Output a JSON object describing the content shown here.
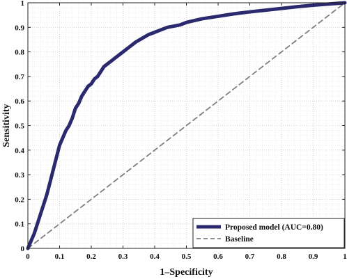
{
  "chart_data": {
    "type": "line",
    "title": "",
    "xlabel": "1–Specificity",
    "ylabel": "Sensitivity",
    "xlim": [
      0,
      1
    ],
    "ylim": [
      0,
      1
    ],
    "x_ticks": [
      "0",
      "0.1",
      "0.2",
      "0.3",
      "0.4",
      "0.5",
      "0.6",
      "0.7",
      "0.8",
      "0.9",
      "1"
    ],
    "y_ticks": [
      "0",
      "0.1",
      "0.2",
      "0.3",
      "0.4",
      "0.5",
      "0.6",
      "0.7",
      "0.8",
      "0.9",
      "1"
    ],
    "grid": true,
    "legend_position": "bottom-right",
    "series": [
      {
        "name": "Proposed model (AUC=0.80)",
        "color": "#2b2a6e",
        "style": "solid",
        "x": [
          0,
          0.01,
          0.02,
          0.03,
          0.04,
          0.05,
          0.06,
          0.07,
          0.08,
          0.09,
          0.1,
          0.11,
          0.12,
          0.13,
          0.14,
          0.15,
          0.16,
          0.17,
          0.18,
          0.19,
          0.2,
          0.21,
          0.22,
          0.23,
          0.24,
          0.25,
          0.26,
          0.27,
          0.28,
          0.29,
          0.3,
          0.32,
          0.34,
          0.36,
          0.38,
          0.4,
          0.42,
          0.44,
          0.46,
          0.48,
          0.5,
          0.55,
          0.6,
          0.65,
          0.7,
          0.75,
          0.8,
          0.85,
          0.9,
          0.95,
          1.0
        ],
        "y": [
          0,
          0.03,
          0.06,
          0.1,
          0.14,
          0.18,
          0.22,
          0.27,
          0.32,
          0.37,
          0.42,
          0.45,
          0.48,
          0.5,
          0.53,
          0.57,
          0.59,
          0.62,
          0.64,
          0.66,
          0.67,
          0.69,
          0.7,
          0.72,
          0.74,
          0.75,
          0.76,
          0.77,
          0.78,
          0.79,
          0.8,
          0.82,
          0.84,
          0.855,
          0.87,
          0.88,
          0.89,
          0.9,
          0.905,
          0.91,
          0.92,
          0.935,
          0.945,
          0.955,
          0.963,
          0.97,
          0.977,
          0.984,
          0.99,
          0.995,
          1.0
        ]
      },
      {
        "name": "Baseline",
        "color": "#7f7f7f",
        "style": "dashed",
        "x": [
          0,
          1
        ],
        "y": [
          0,
          1
        ]
      }
    ]
  }
}
